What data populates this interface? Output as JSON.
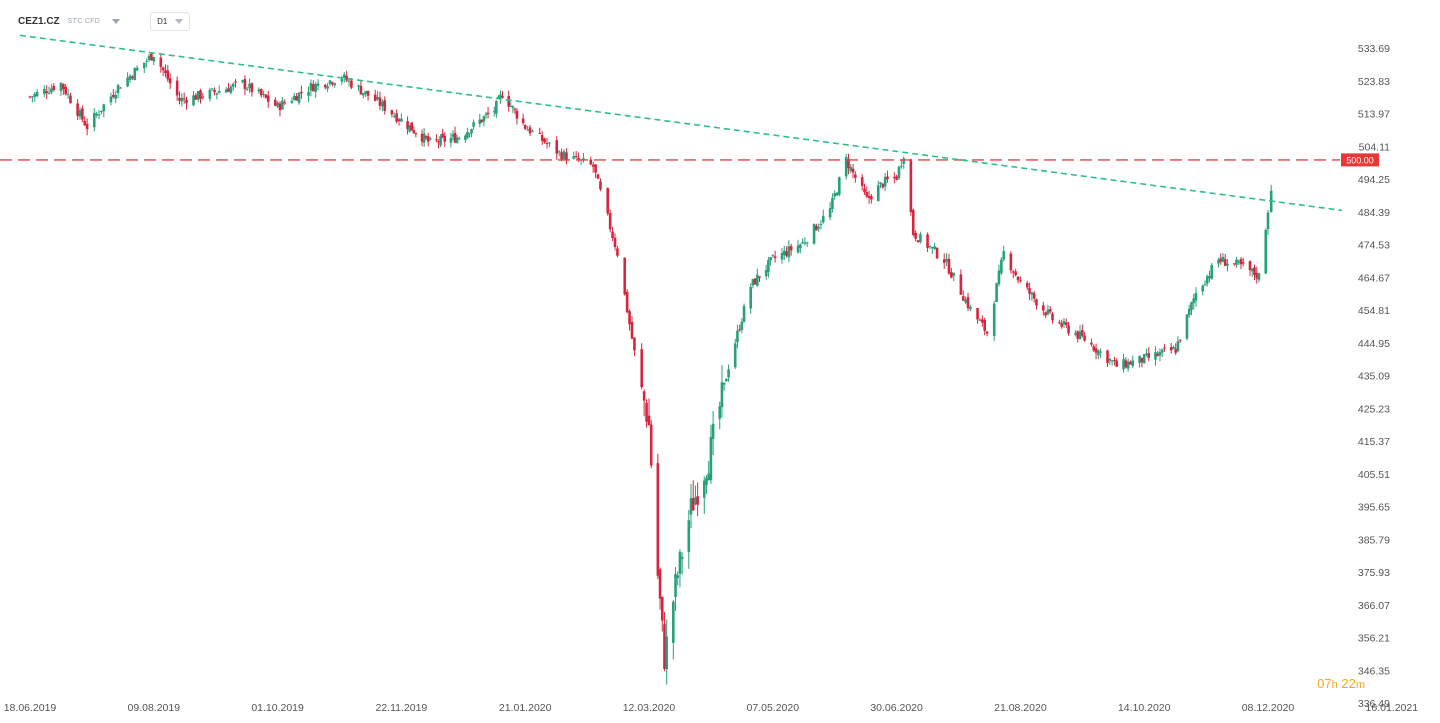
{
  "header": {
    "symbol": "CEZ1.CZ",
    "tags": "STC  CFD",
    "timeframe": "D1"
  },
  "timer": {
    "hours": "07",
    "h_unit": "h",
    "minutes": "22",
    "m_unit": "m"
  },
  "colors": {
    "up": "#26a17b",
    "down": "#d6263f",
    "trendline": "#2fbf8e",
    "level": "#e04545",
    "level_label_bg": "#e53935"
  },
  "chart_data": {
    "type": "candlestick",
    "title": "",
    "ylim": [
      336.49,
      538
    ],
    "y_ticks": [
      "533.69",
      "523.83",
      "513.97",
      "504.11",
      "494.25",
      "484.39",
      "474.53",
      "464.67",
      "454.81",
      "444.95",
      "435.09",
      "425.23",
      "415.37",
      "405.51",
      "395.65",
      "385.79",
      "375.93",
      "366.07",
      "356.21",
      "346.35",
      "336.49"
    ],
    "x_ticks": [
      "18.06.2019",
      "09.08.2019",
      "01.10.2019",
      "22.11.2019",
      "21.01.2020",
      "12.03.2020",
      "07.05.2020",
      "30.06.2020",
      "21.08.2020",
      "14.10.2020",
      "08.12.2020",
      "16.01.2021"
    ],
    "horizontal_level": {
      "value": 500.0,
      "label": "500.00"
    },
    "trendline": {
      "start": {
        "date": "18.06.2019",
        "value": 537.5
      },
      "end": {
        "date": "16.01.2021",
        "value": 484.8
      }
    },
    "close_path": [
      [
        "18.06.2019",
        519
      ],
      [
        "01.07.2019",
        523
      ],
      [
        "12.07.2019",
        510
      ],
      [
        "25.07.2019",
        522
      ],
      [
        "06.08.2019",
        530
      ],
      [
        "09.08.2019",
        532
      ],
      [
        "20.08.2019",
        518
      ],
      [
        "02.09.2019",
        520
      ],
      [
        "16.09.2019",
        523
      ],
      [
        "01.10.2019",
        516
      ],
      [
        "15.10.2019",
        522
      ],
      [
        "28.10.2019",
        525
      ],
      [
        "11.11.2019",
        518
      ],
      [
        "22.11.2019",
        512
      ],
      [
        "06.12.2019",
        505
      ],
      [
        "20.12.2019",
        507
      ],
      [
        "06.01.2020",
        515
      ],
      [
        "10.01.2020",
        520
      ],
      [
        "21.01.2020",
        510
      ],
      [
        "04.02.2020",
        502
      ],
      [
        "18.02.2020",
        498
      ],
      [
        "28.02.2020",
        472
      ],
      [
        "06.03.2020",
        442
      ],
      [
        "12.03.2020",
        420
      ],
      [
        "16.03.2020",
        375
      ],
      [
        "19.03.2020",
        350
      ],
      [
        "24.03.2020",
        372
      ],
      [
        "31.03.2020",
        395
      ],
      [
        "08.04.2020",
        410
      ],
      [
        "17.04.2020",
        438
      ],
      [
        "27.04.2020",
        462
      ],
      [
        "07.05.2020",
        470
      ],
      [
        "20.05.2020",
        475
      ],
      [
        "01.06.2020",
        485
      ],
      [
        "08.06.2020",
        500
      ],
      [
        "17.06.2020",
        488
      ],
      [
        "24.06.2020",
        493
      ],
      [
        "30.06.2020",
        495
      ],
      [
        "03.07.2020",
        502
      ],
      [
        "07.07.2020",
        478
      ],
      [
        "20.07.2020",
        470
      ],
      [
        "31.07.2020",
        455
      ],
      [
        "07.08.2020",
        448
      ],
      [
        "14.08.2020",
        472
      ],
      [
        "21.08.2020",
        463
      ],
      [
        "04.09.2020",
        452
      ],
      [
        "18.09.2020",
        446
      ],
      [
        "02.10.2020",
        438
      ],
      [
        "14.10.2020",
        440
      ],
      [
        "28.10.2020",
        443
      ],
      [
        "06.11.2020",
        460
      ],
      [
        "16.11.2020",
        470
      ],
      [
        "26.11.2020",
        468
      ],
      [
        "04.12.2020",
        465
      ],
      [
        "08.12.2020",
        485
      ],
      [
        "09.12.2020",
        492
      ]
    ],
    "grid": false,
    "legend": "none"
  }
}
